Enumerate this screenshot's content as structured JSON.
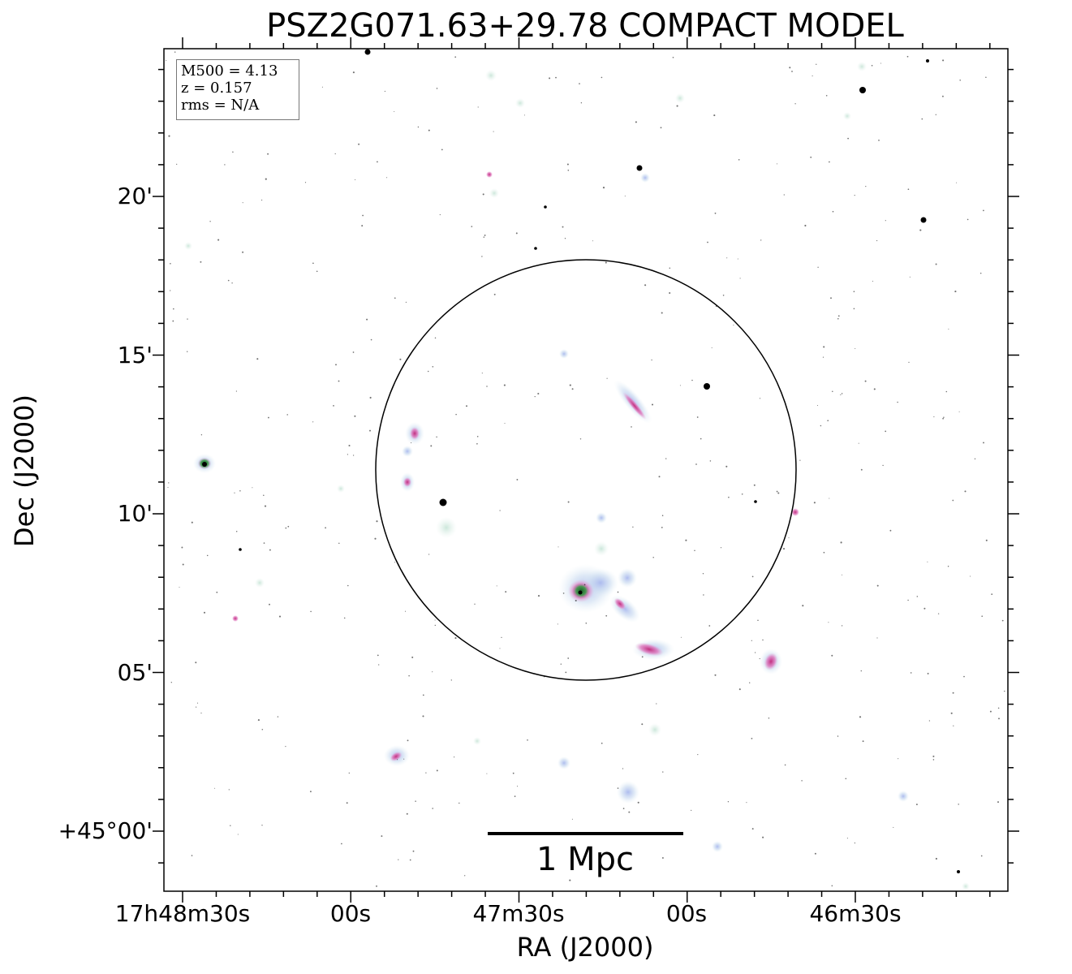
{
  "title": "PSZ2G071.63+29.78 COMPACT MODEL",
  "axes": {
    "x_label": "RA (J2000)",
    "y_label": "Dec (J2000)",
    "x_ticks": [
      "17h48m30s",
      "00s",
      "47m30s",
      "00s",
      "46m30s"
    ],
    "y_ticks": [
      "20'",
      "15'",
      "10'",
      "05'",
      "+45°00'"
    ]
  },
  "info_box": {
    "mass": "M500 = 4.13",
    "redshift": "z = 0.157",
    "rms": "rms = N/A"
  },
  "scale_bar": {
    "label": "1 Mpc"
  },
  "colors": {
    "frame": "#000000",
    "glow": "#bfd8ee",
    "core_magenta": "#d9449a",
    "core_green": "#2f8a3a",
    "pale_green": "#cfe8d8"
  }
}
